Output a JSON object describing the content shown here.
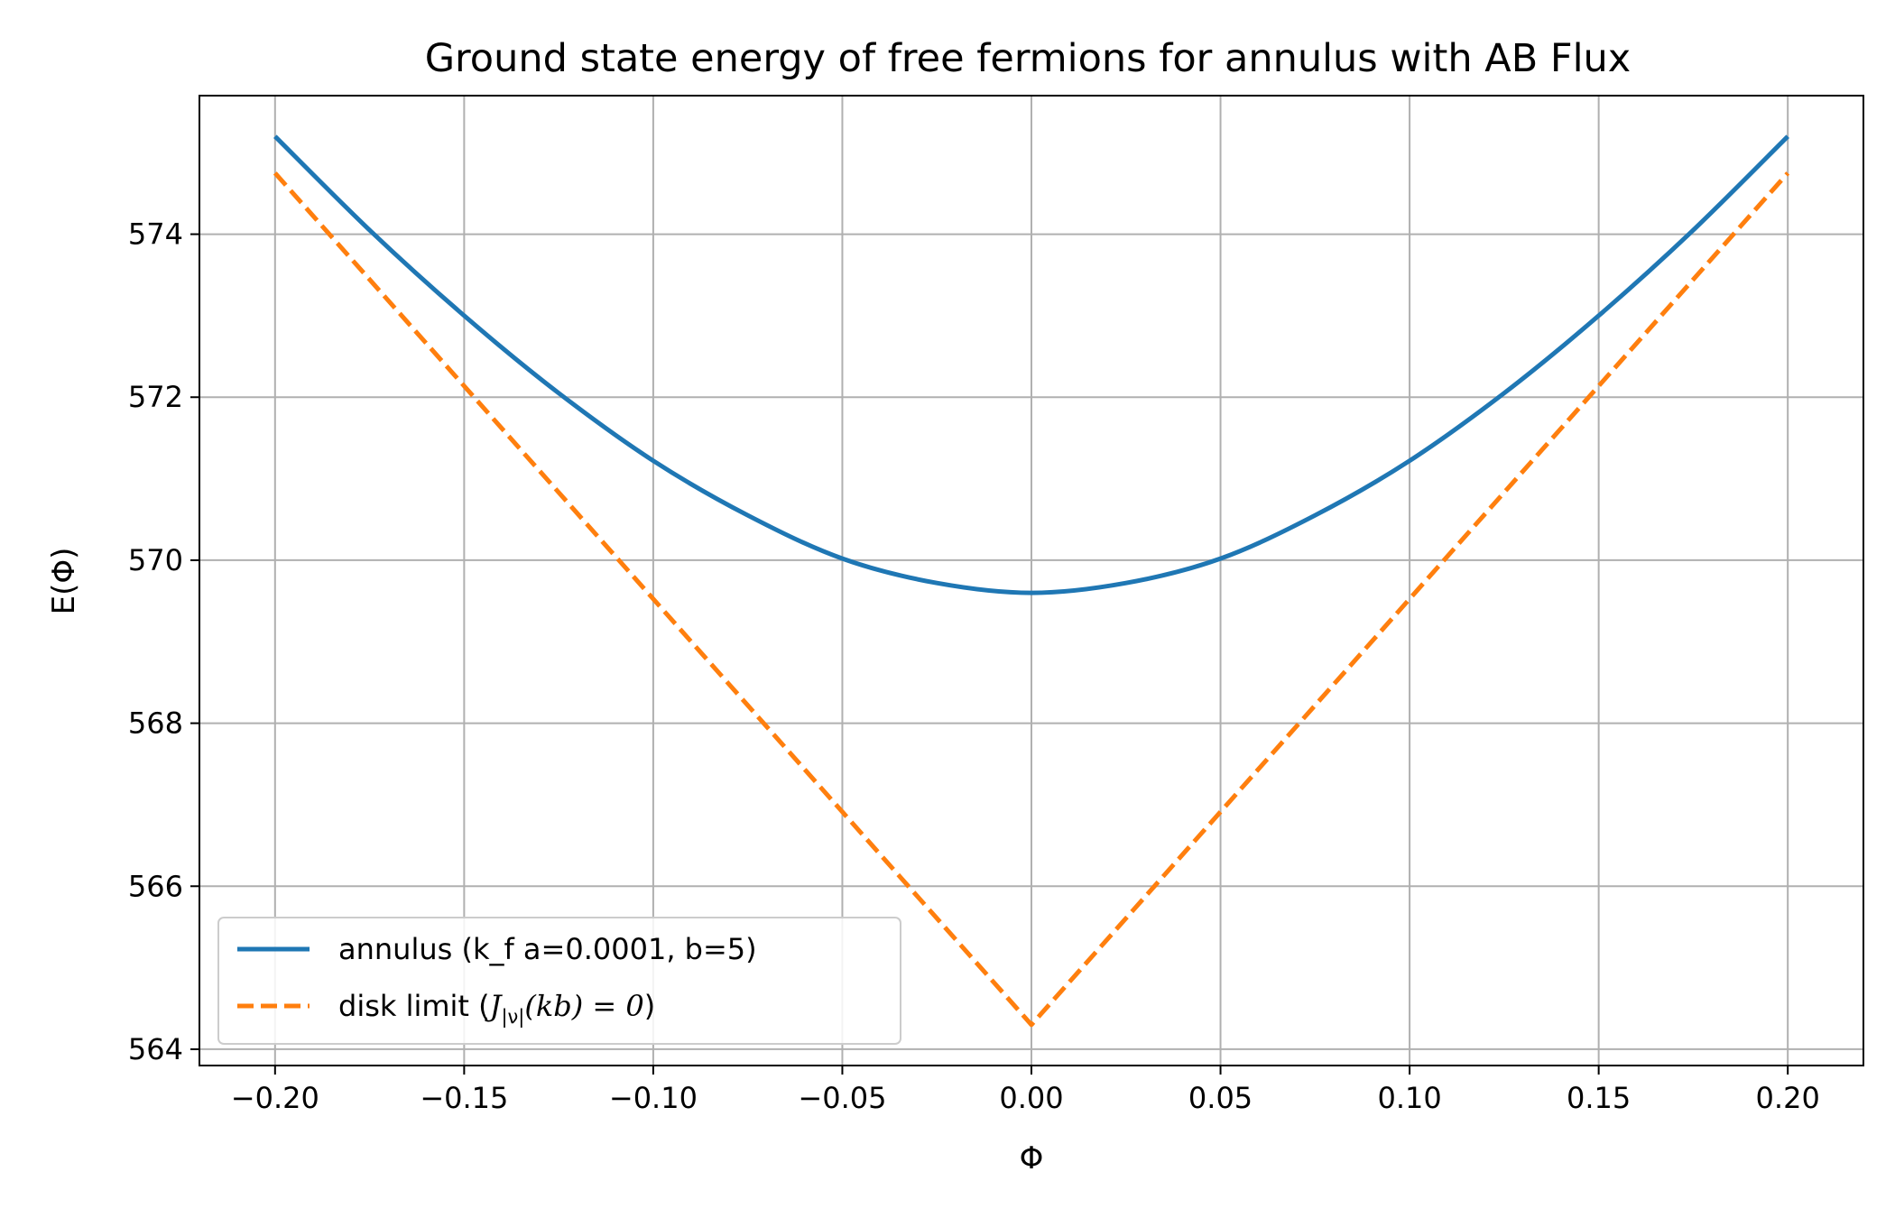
{
  "chart_data": {
    "type": "line",
    "title": "Ground state energy of free fermions for annulus with AB Flux",
    "xlabel": "Φ",
    "ylabel": "E(Φ)",
    "xlim": [
      -0.22,
      0.22
    ],
    "ylim": [
      563.8,
      575.7
    ],
    "xticks": [
      -0.2,
      -0.15,
      -0.1,
      -0.05,
      0.0,
      0.05,
      0.1,
      0.15,
      0.2
    ],
    "xtick_labels": [
      "−0.20",
      "−0.15",
      "−0.10",
      "−0.05",
      "0.00",
      "0.05",
      "0.10",
      "0.15",
      "0.20"
    ],
    "yticks": [
      564,
      566,
      568,
      570,
      572,
      574
    ],
    "ytick_labels": [
      "564",
      "566",
      "568",
      "570",
      "572",
      "574"
    ],
    "grid": true,
    "legend_position": "lower-left",
    "series": [
      {
        "name": "annulus (k_f a=0.0001, b=5)",
        "legend_label": "annulus (k_f a=0.0001, b=5)",
        "style": "solid",
        "color": "#1f77b4",
        "x": [
          -0.2,
          -0.175,
          -0.15,
          -0.125,
          -0.1,
          -0.075,
          -0.05,
          -0.025,
          0.0,
          0.025,
          0.05,
          0.075,
          0.1,
          0.125,
          0.15,
          0.175,
          0.2
        ],
        "y": [
          575.2,
          574.05,
          573.0,
          572.05,
          571.22,
          570.55,
          570.02,
          569.72,
          569.6,
          569.72,
          570.02,
          570.55,
          571.22,
          572.05,
          573.0,
          574.05,
          575.2
        ]
      },
      {
        "name": "disk limit",
        "legend_label_prefix": "disk limit (",
        "legend_label_J": "J",
        "legend_label_sub": "|ν|",
        "legend_label_args": "(kb) = 0",
        "legend_label_suffix": ")",
        "style": "dashed",
        "color": "#ff7f0e",
        "x": [
          -0.2,
          0.0,
          0.2
        ],
        "y": [
          574.75,
          564.3,
          574.75
        ]
      }
    ]
  }
}
